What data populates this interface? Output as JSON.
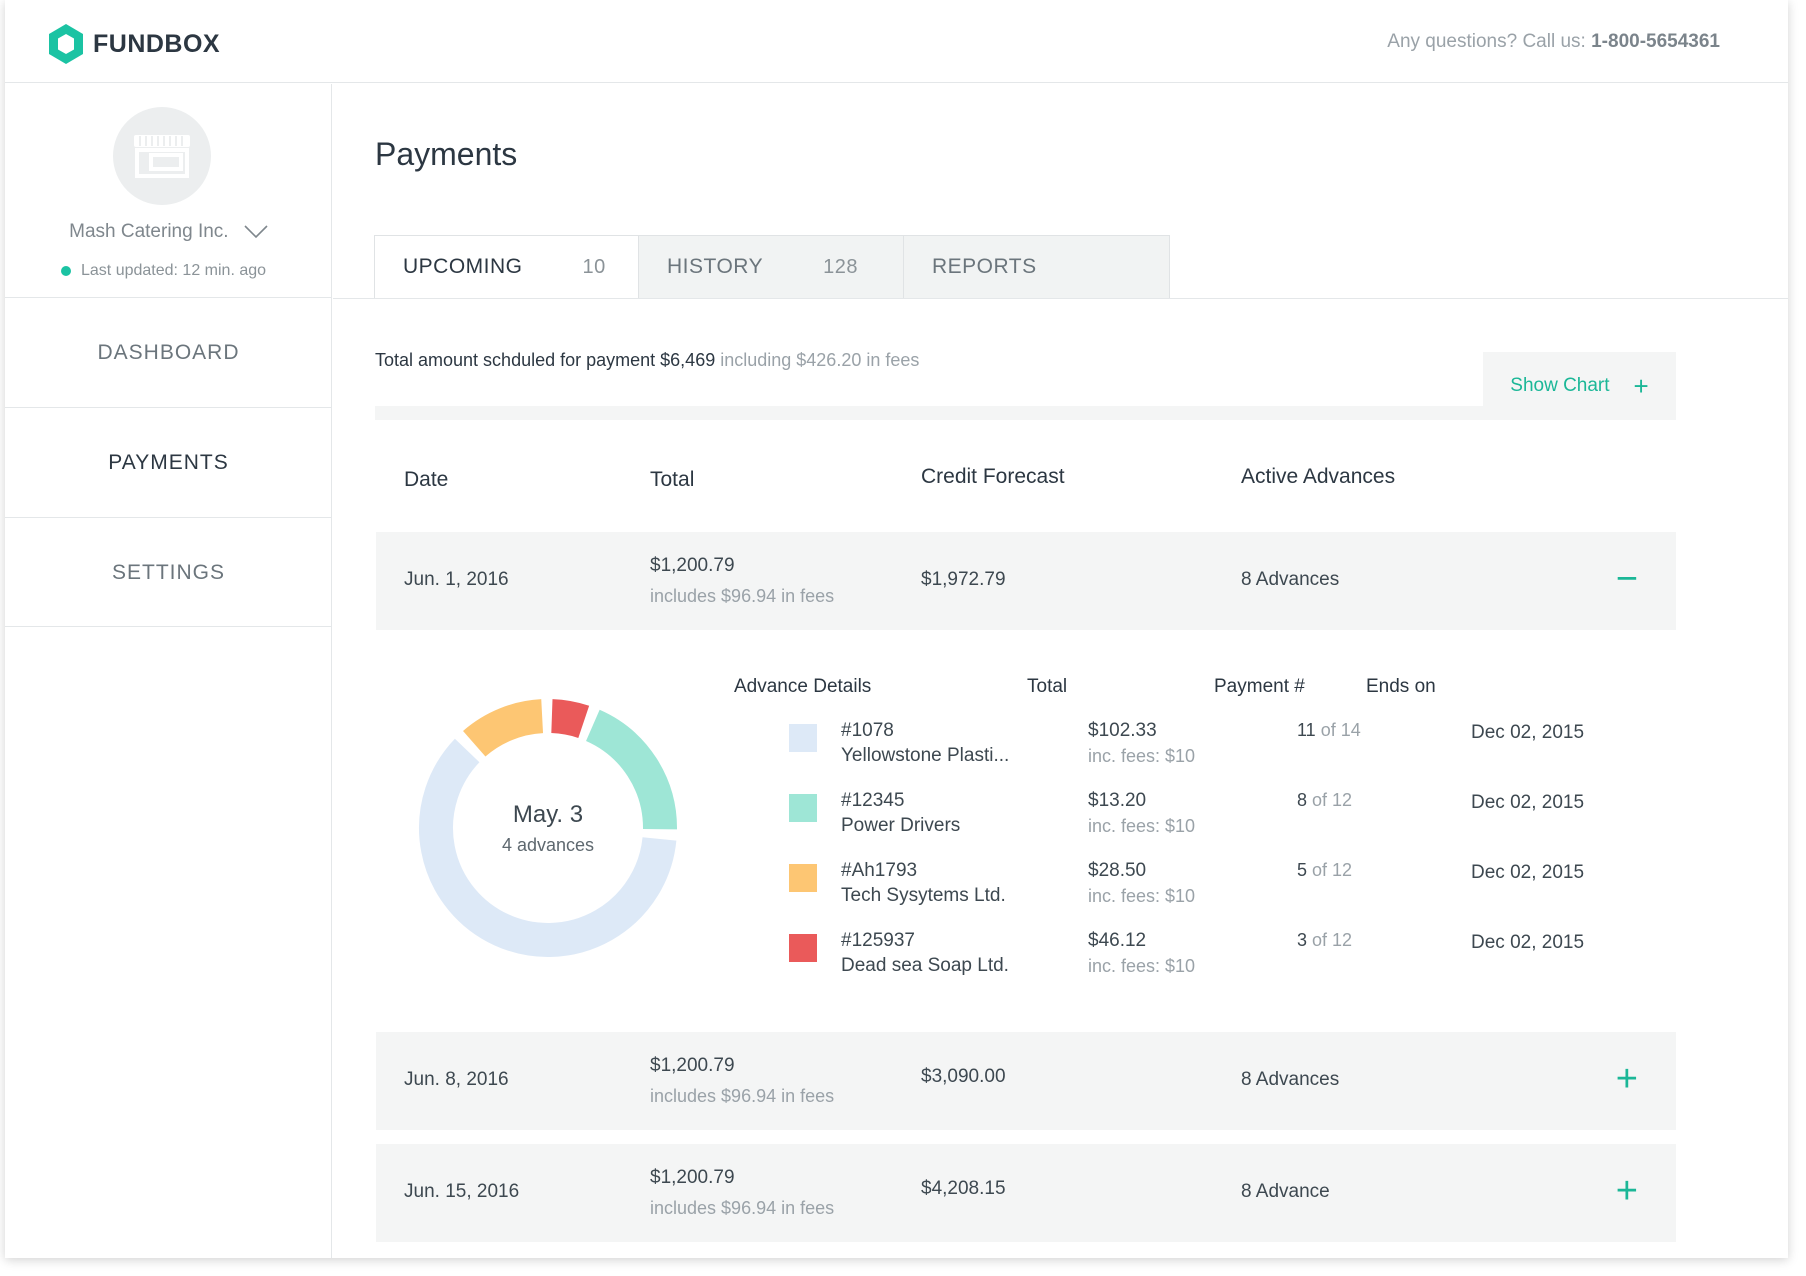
{
  "brand": {
    "name": "FUNDBOX",
    "accent": "#1bc3a3"
  },
  "header": {
    "help_text": "Any questions? Call us: ",
    "phone": "1-800-5654361"
  },
  "sidebar": {
    "company": "Mash Catering Inc.",
    "updated": "Last updated: 12 min. ago",
    "nav": [
      {
        "label": "DASHBOARD"
      },
      {
        "label": "PAYMENTS"
      },
      {
        "label": "SETTINGS"
      }
    ]
  },
  "main": {
    "title": "Payments",
    "tabs": [
      {
        "label": "UPCOMING",
        "count": "10"
      },
      {
        "label": "HISTORY",
        "count": "128"
      },
      {
        "label": "REPORTS"
      }
    ],
    "summary": {
      "text": "Total amount schduled for payment $6,469",
      "fees": " including $426.20 in fees"
    },
    "show_chart": "Show Chart",
    "columns": {
      "date": "Date",
      "total": "Total",
      "credit": "Credit Forecast",
      "advances": "Active Advances"
    },
    "payments": [
      {
        "date": "Jun. 1, 2016",
        "total": "$1,200.79",
        "fees": "includes $96.94 in fees",
        "credit": "$1,972.79",
        "advances": "8 Advances",
        "toggle": "−"
      },
      {
        "date": "Jun. 8, 2016",
        "total": "$1,200.79",
        "fees": "includes $96.94 in fees",
        "credit": "$3,090.00",
        "advances": "8 Advances",
        "toggle": "+"
      },
      {
        "date": "Jun. 15, 2016",
        "total": "$1,200.79",
        "fees": "includes $96.94 in fees",
        "credit": "$4,208.15",
        "advances": "8 Advance",
        "toggle": "+"
      }
    ],
    "details": {
      "donut_date": "May. 3",
      "donut_count": "4 advances",
      "headers": {
        "advance": "Advance Details",
        "total": "Total",
        "payment": "Payment #",
        "ends": "Ends on"
      },
      "advances": [
        {
          "id": "#1078",
          "name": "Yellowstone Plasti...",
          "total": "$102.33",
          "fee": "inc. fees: $10",
          "pay_num": "11",
          "pay_of": " of 14",
          "ends": "Dec 02, 2015",
          "color": "#dde9f7",
          "share": 0.62
        },
        {
          "id": "#12345",
          "name": "Power Drivers",
          "total": "$13.20",
          "fee": "inc. fees: $10",
          "pay_num": "8",
          "pay_of": " of 12",
          "ends": "Dec 02, 2015",
          "color": "#9ee6d6",
          "share": 0.2
        },
        {
          "id": "#Ah1793",
          "name": "Tech Sysytems Ltd.",
          "total": "$28.50",
          "fee": "inc. fees: $10",
          "pay_num": "5",
          "pay_of": " of 12",
          "ends": "Dec 02, 2015",
          "color": "#fdc673",
          "share": 0.12
        },
        {
          "id": "#125937",
          "name": "Dead sea Soap Ltd.",
          "total": "$46.12",
          "fee": "inc. fees: $10",
          "pay_num": "3",
          "pay_of": " of 12",
          "ends": "Dec 02, 2015",
          "color": "#ea5a5a",
          "share": 0.06
        }
      ]
    }
  }
}
